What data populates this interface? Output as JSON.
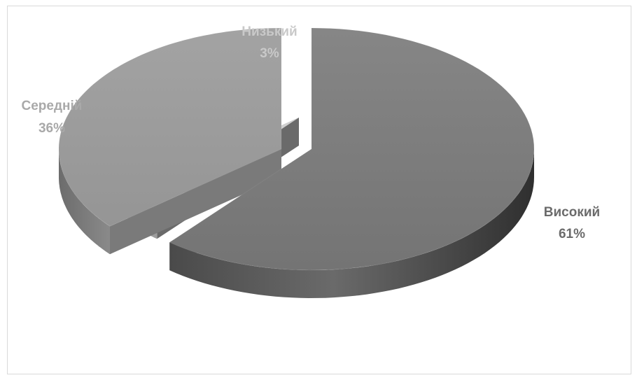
{
  "chart_data": {
    "type": "pie",
    "variant": "3d-exploded",
    "title": "",
    "categories": [
      "Високий",
      "Низький",
      "Середній"
    ],
    "values": [
      61,
      3,
      36
    ],
    "labels": [
      {
        "name": "Високий",
        "percent": "61%"
      },
      {
        "name": "Низький",
        "percent": "3%"
      },
      {
        "name": "Середній",
        "percent": "36%"
      }
    ],
    "colors": [
      "#7b7b7b",
      "#cfcfcf",
      "#9a9a9a"
    ],
    "label_colors": [
      "#6b6b6b",
      "#c9c9c9",
      "#a9a9a9"
    ],
    "legend": "none"
  }
}
